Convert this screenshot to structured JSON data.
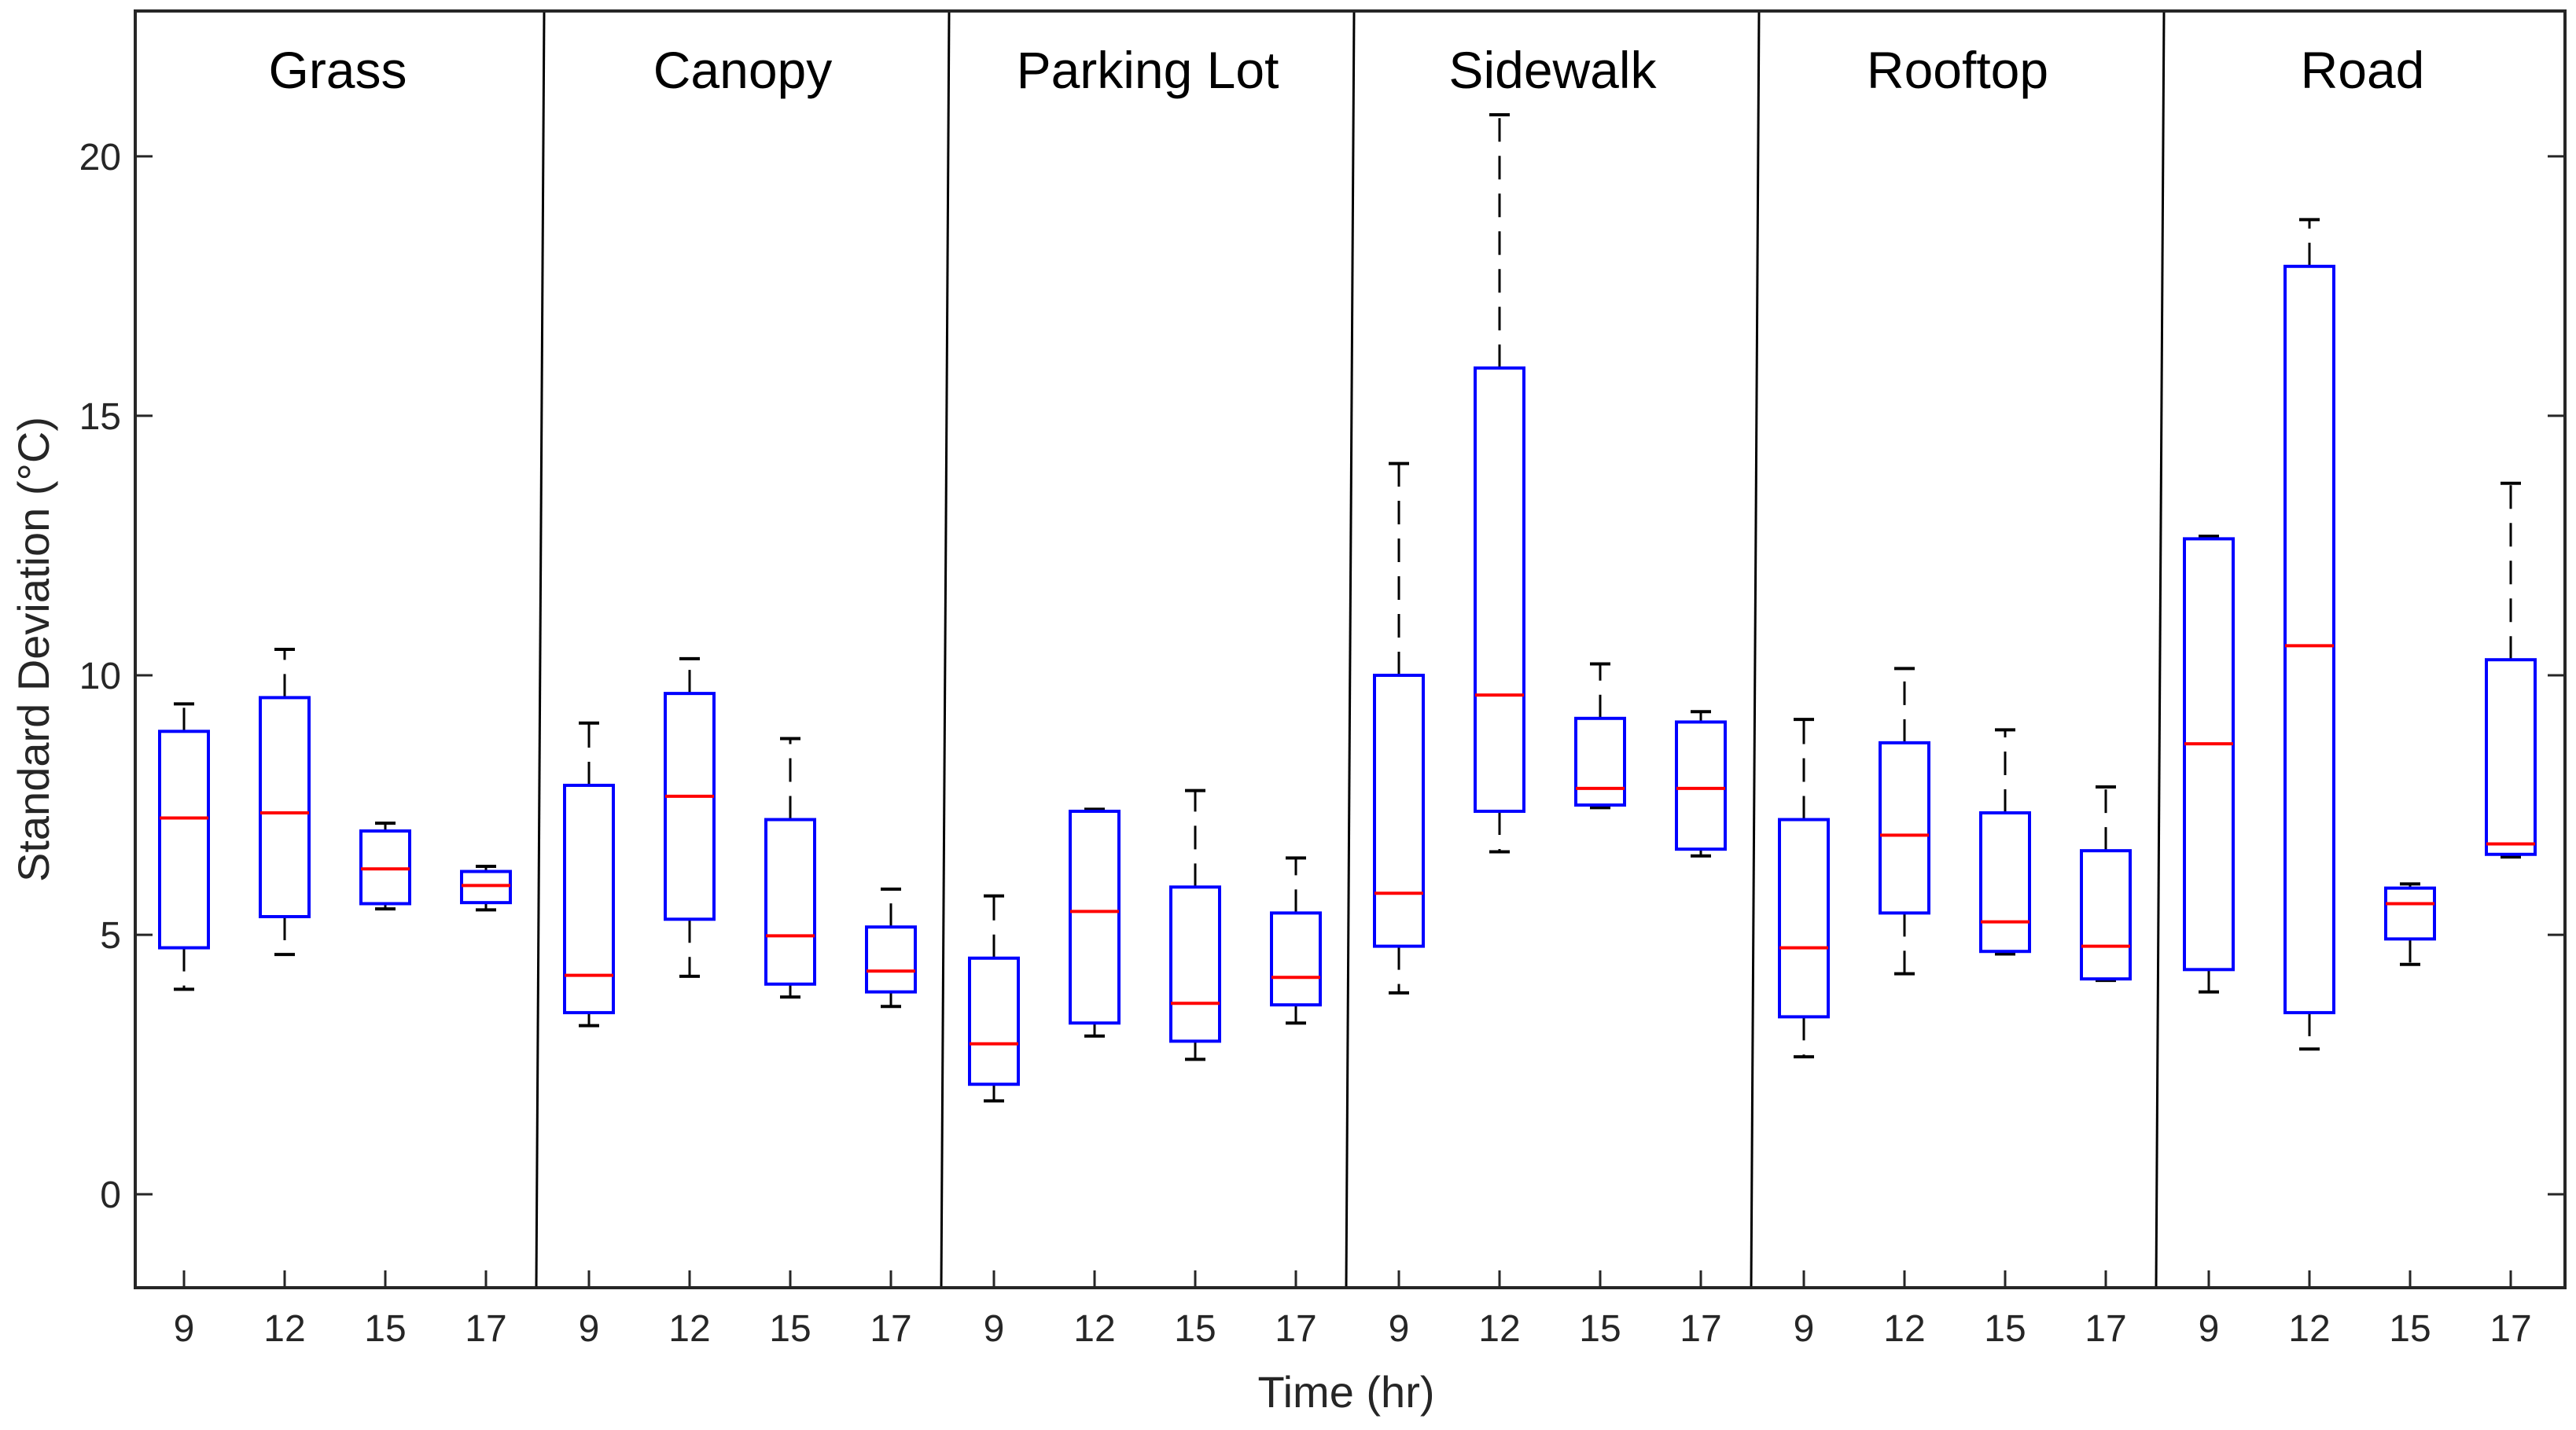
{
  "chart_data": {
    "type": "boxplot",
    "xlabel": "Time (hr)",
    "ylabel": "Standard Deviation (°C)",
    "ylim": [
      -1.8,
      22.8
    ],
    "yticks": [
      0,
      5,
      10,
      15,
      20
    ],
    "colors": {
      "box": "#0000ff",
      "median": "#ff0000",
      "whisker": "#000000",
      "axis": "#262626"
    },
    "groups": [
      {
        "name": "Grass",
        "boxes": [
          {
            "x": "9",
            "min": 3.95,
            "q1": 4.75,
            "median": 7.25,
            "q3": 8.92,
            "max": 9.45
          },
          {
            "x": "12",
            "min": 4.62,
            "q1": 5.35,
            "median": 7.35,
            "q3": 9.57,
            "max": 10.5
          },
          {
            "x": "15",
            "min": 5.5,
            "q1": 5.6,
            "median": 6.27,
            "q3": 7.0,
            "max": 7.15
          },
          {
            "x": "17",
            "min": 5.48,
            "q1": 5.62,
            "median": 5.95,
            "q3": 6.22,
            "max": 6.32
          }
        ]
      },
      {
        "name": "Canopy",
        "boxes": [
          {
            "x": "9",
            "min": 3.25,
            "q1": 3.5,
            "median": 4.22,
            "q3": 7.88,
            "max": 9.08
          },
          {
            "x": "12",
            "min": 4.2,
            "q1": 5.3,
            "median": 7.67,
            "q3": 9.65,
            "max": 10.32
          },
          {
            "x": "15",
            "min": 3.8,
            "q1": 4.05,
            "median": 4.98,
            "q3": 7.22,
            "max": 8.78
          },
          {
            "x": "17",
            "min": 3.62,
            "q1": 3.9,
            "median": 4.3,
            "q3": 5.15,
            "max": 5.88
          }
        ]
      },
      {
        "name": "Parking Lot",
        "boxes": [
          {
            "x": "9",
            "min": 1.8,
            "q1": 2.12,
            "median": 2.9,
            "q3": 4.55,
            "max": 5.75
          },
          {
            "x": "12",
            "min": 3.05,
            "q1": 3.3,
            "median": 5.45,
            "q3": 7.38,
            "max": 7.42
          },
          {
            "x": "15",
            "min": 2.6,
            "q1": 2.95,
            "median": 3.68,
            "q3": 5.92,
            "max": 7.78
          },
          {
            "x": "17",
            "min": 3.3,
            "q1": 3.65,
            "median": 4.18,
            "q3": 5.42,
            "max": 6.48
          }
        ]
      },
      {
        "name": "Sidewalk",
        "boxes": [
          {
            "x": "9",
            "min": 3.88,
            "q1": 4.78,
            "median": 5.8,
            "q3": 10.0,
            "max": 14.08
          },
          {
            "x": "12",
            "min": 6.6,
            "q1": 7.38,
            "median": 9.62,
            "q3": 15.92,
            "max": 20.8
          },
          {
            "x": "15",
            "min": 7.45,
            "q1": 7.5,
            "median": 7.82,
            "q3": 9.17,
            "max": 10.22
          },
          {
            "x": "17",
            "min": 6.52,
            "q1": 6.65,
            "median": 7.82,
            "q3": 9.1,
            "max": 9.3
          }
        ]
      },
      {
        "name": "Rooftop",
        "boxes": [
          {
            "x": "9",
            "min": 2.65,
            "q1": 3.42,
            "median": 4.75,
            "q3": 7.22,
            "max": 9.15
          },
          {
            "x": "12",
            "min": 4.25,
            "q1": 5.42,
            "median": 6.92,
            "q3": 8.7,
            "max": 10.13
          },
          {
            "x": "15",
            "min": 4.63,
            "q1": 4.68,
            "median": 5.25,
            "q3": 7.35,
            "max": 8.95
          },
          {
            "x": "17",
            "min": 4.12,
            "q1": 4.15,
            "median": 4.78,
            "q3": 6.62,
            "max": 7.85
          }
        ]
      },
      {
        "name": "Road",
        "boxes": [
          {
            "x": "9",
            "min": 3.9,
            "q1": 4.33,
            "median": 8.68,
            "q3": 12.63,
            "max": 12.68
          },
          {
            "x": "12",
            "min": 2.8,
            "q1": 3.5,
            "median": 10.57,
            "q3": 17.88,
            "max": 18.78
          },
          {
            "x": "15",
            "min": 4.43,
            "q1": 4.92,
            "median": 5.6,
            "q3": 5.9,
            "max": 5.98
          },
          {
            "x": "17",
            "min": 6.5,
            "q1": 6.55,
            "median": 6.75,
            "q3": 10.3,
            "max": 13.7
          }
        ]
      }
    ]
  }
}
